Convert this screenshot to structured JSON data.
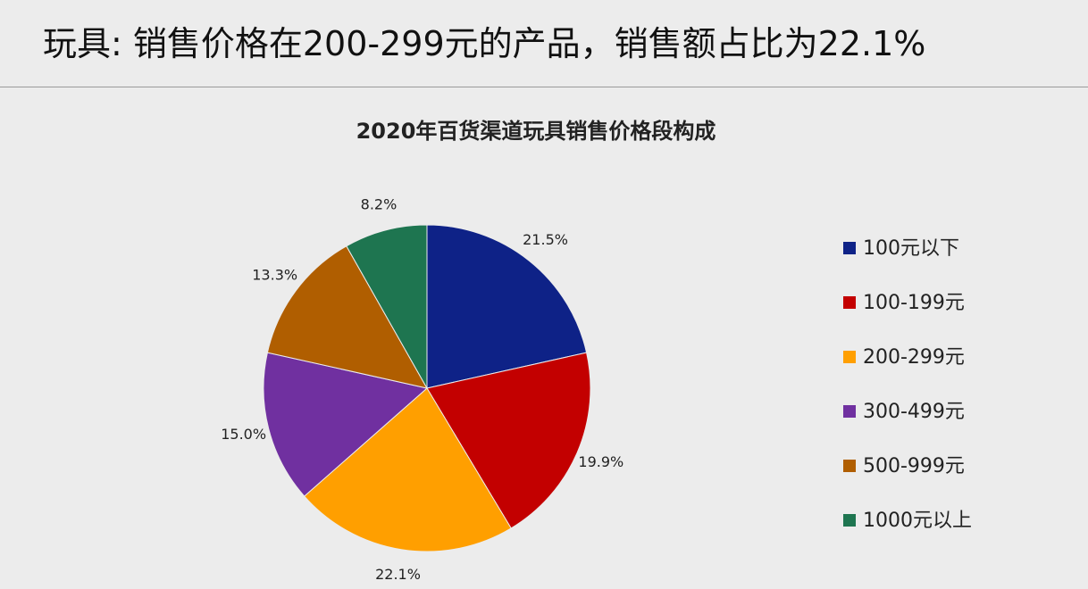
{
  "header": {
    "title": "玩具: 销售价格在200-299元的产品，销售额占比为22.1%"
  },
  "chart_data": {
    "type": "pie",
    "title": "2020年百货渠道玩具销售价格段构成",
    "categories": [
      "100元以下",
      "100-199元",
      "200-299元",
      "300-499元",
      "500-999元",
      "1000元以上"
    ],
    "values": [
      21.5,
      19.9,
      22.1,
      15.0,
      13.3,
      8.2
    ],
    "value_labels": [
      "21.5%",
      "19.9%",
      "22.1%",
      "15.0%",
      "13.3%",
      "8.2%"
    ],
    "colors": [
      "#0e2287",
      "#c30000",
      "#ff9f00",
      "#7030a0",
      "#b05e00",
      "#1e7550"
    ],
    "legend": "right"
  }
}
